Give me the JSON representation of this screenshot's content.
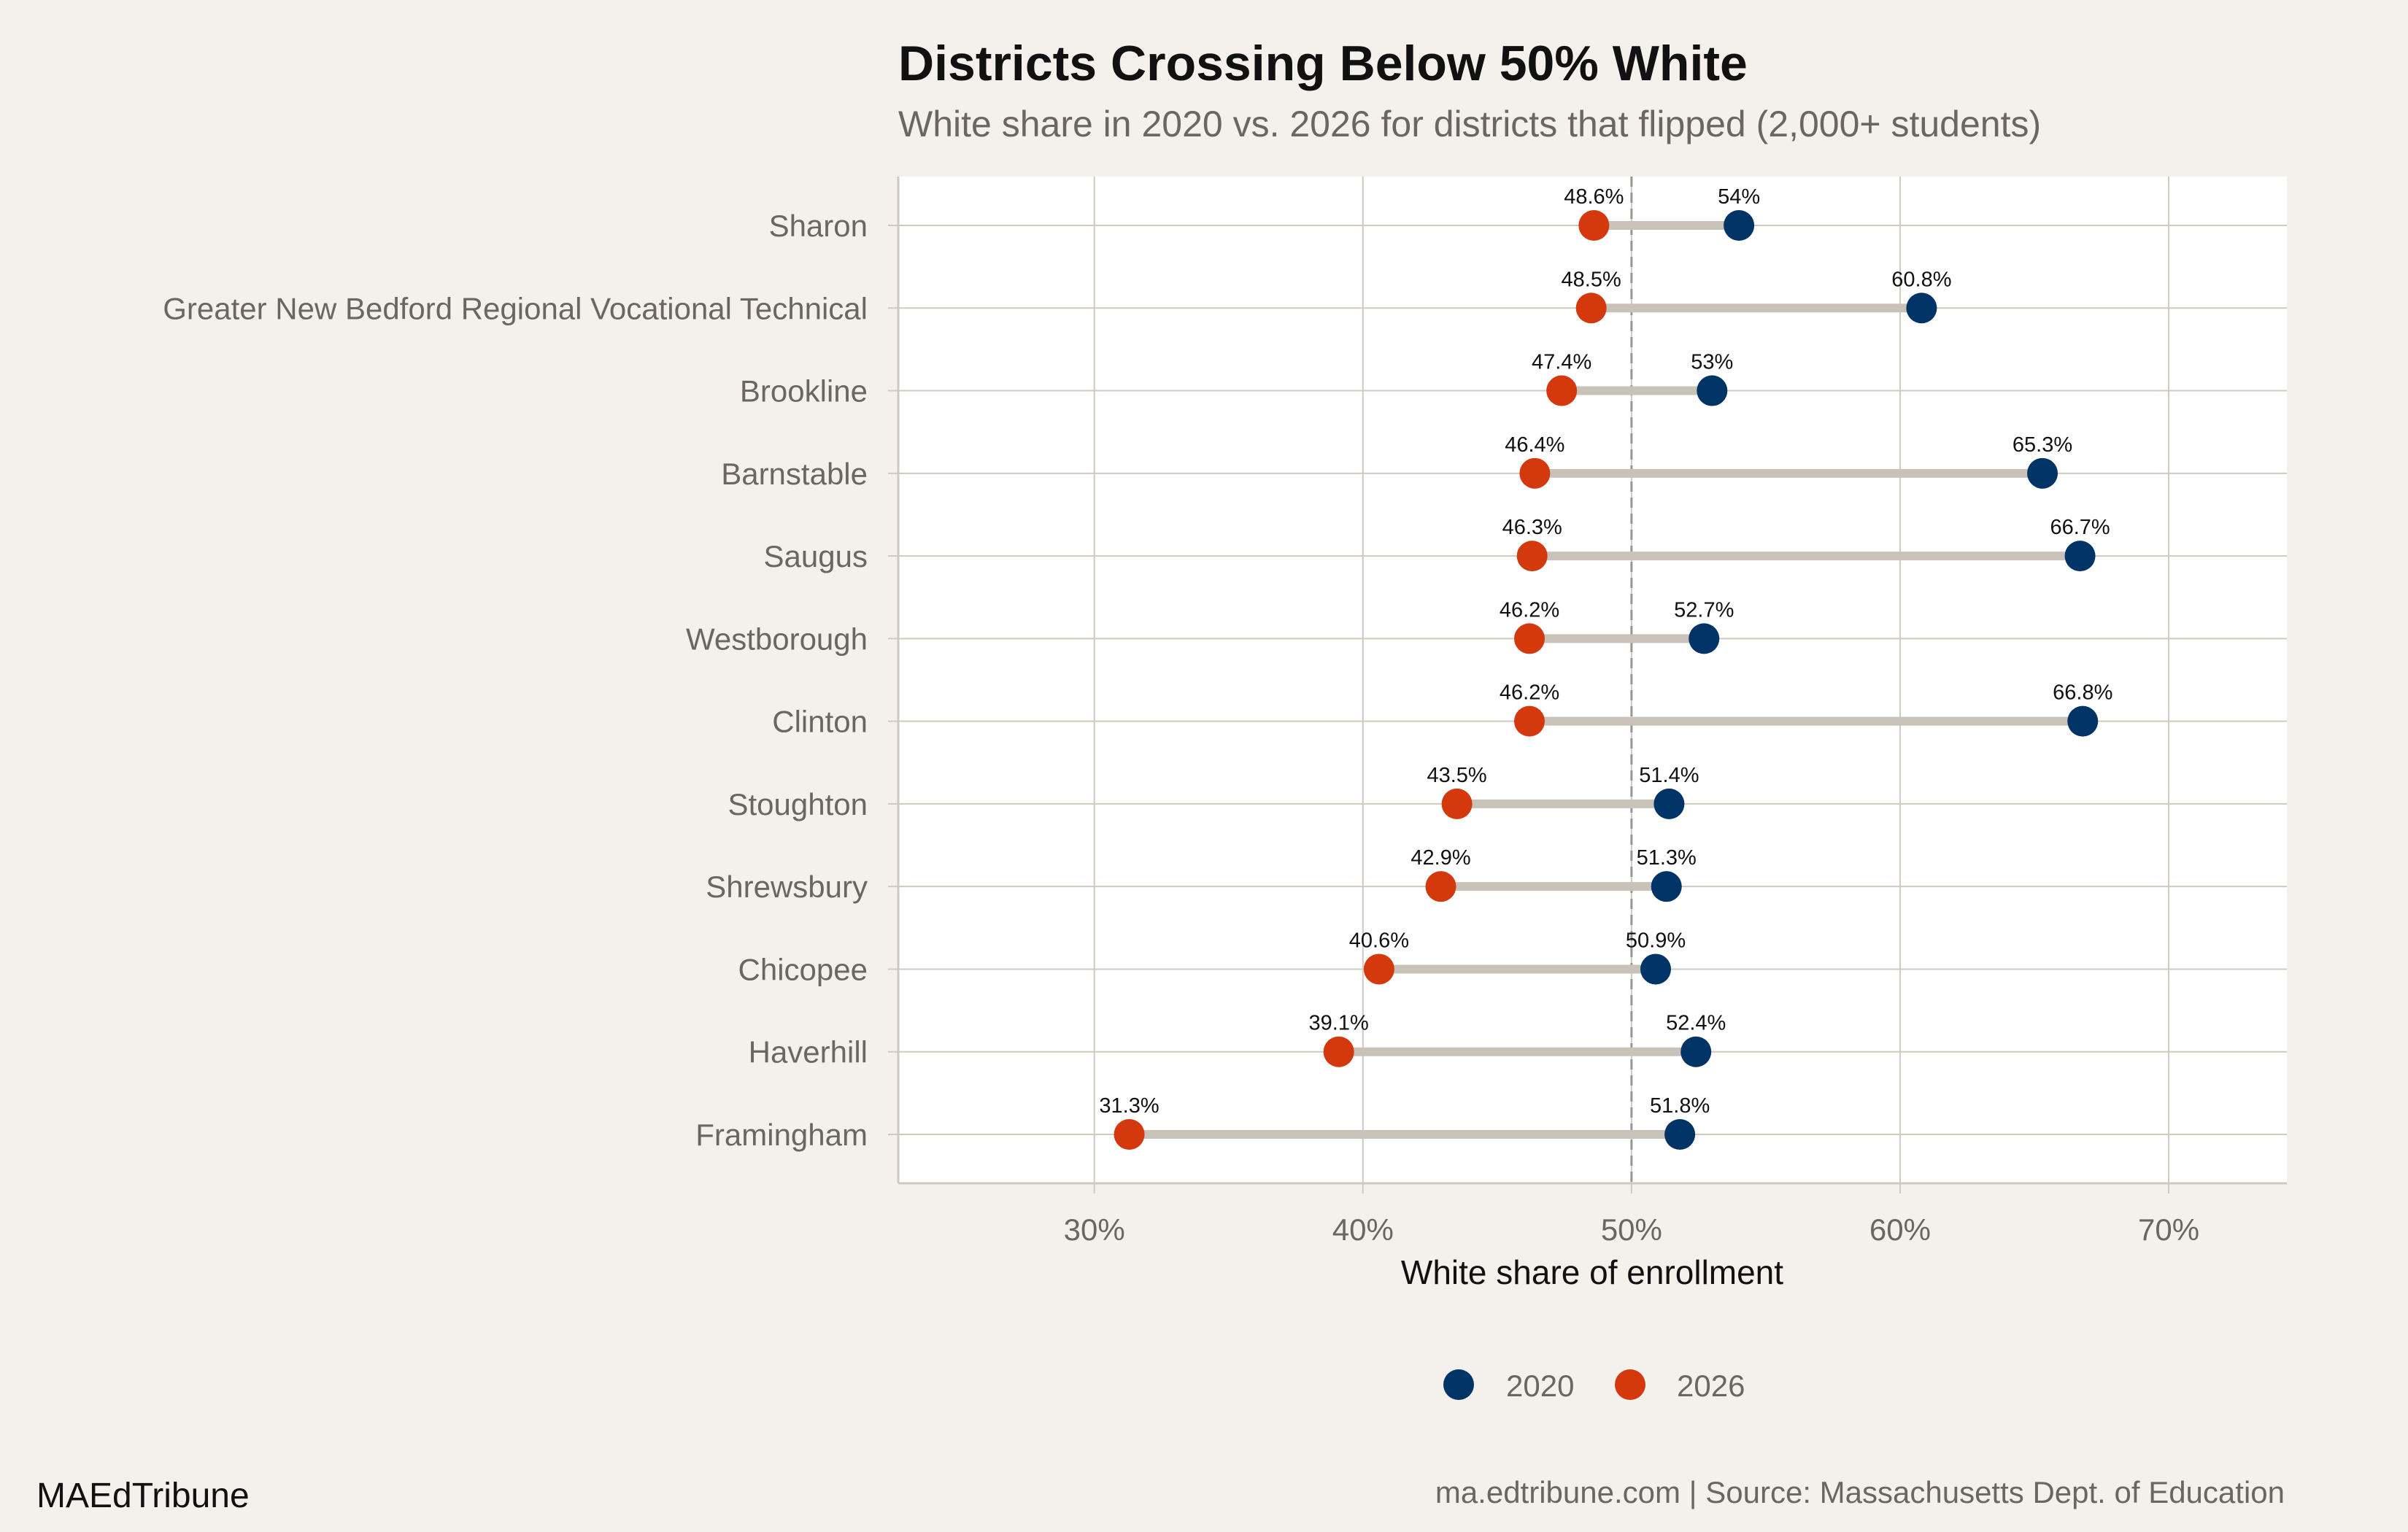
{
  "chart_data": {
    "type": "dumbbell",
    "title": "Districts Crossing Below 50% White",
    "subtitle": "White share in 2020 vs. 2026 for districts that flipped (2,000+ students)",
    "xlabel": "White share of enrollment",
    "ylabel": "",
    "xlim": [
      22.7,
      74.4
    ],
    "x_ticks": [
      "30%",
      "40%",
      "50%",
      "60%",
      "70%"
    ],
    "x_tick_values": [
      30,
      40,
      50,
      60,
      70
    ],
    "reference_line": 50,
    "grid": true,
    "legend_position": "bottom",
    "categories": [
      "Sharon",
      "Greater New Bedford Regional Vocational Technical",
      "Brookline",
      "Barnstable",
      "Saugus",
      "Westborough",
      "Clinton",
      "Stoughton",
      "Shrewsbury",
      "Chicopee",
      "Haverhill",
      "Framingham"
    ],
    "series": [
      {
        "name": "2020",
        "color": "#003366",
        "values": [
          54,
          60.8,
          53,
          65.3,
          66.7,
          52.7,
          66.8,
          51.4,
          51.3,
          50.9,
          52.4,
          51.8
        ],
        "labels": [
          "54%",
          "60.8%",
          "53%",
          "65.3%",
          "66.7%",
          "52.7%",
          "66.8%",
          "51.4%",
          "51.3%",
          "50.9%",
          "52.4%",
          "51.8%"
        ]
      },
      {
        "name": "2026",
        "color": "#d4380d",
        "values": [
          48.6,
          48.5,
          47.4,
          46.4,
          46.3,
          46.2,
          46.2,
          43.5,
          42.9,
          40.6,
          39.1,
          31.3
        ],
        "labels": [
          "48.6%",
          "48.5%",
          "47.4%",
          "46.4%",
          "46.3%",
          "46.2%",
          "46.2%",
          "43.5%",
          "42.9%",
          "40.6%",
          "39.1%",
          "31.3%"
        ]
      }
    ]
  },
  "footer": {
    "brand": "MAEdTribune",
    "source": "ma.edtribune.com | Source: Massachusetts Dept. of Education"
  }
}
